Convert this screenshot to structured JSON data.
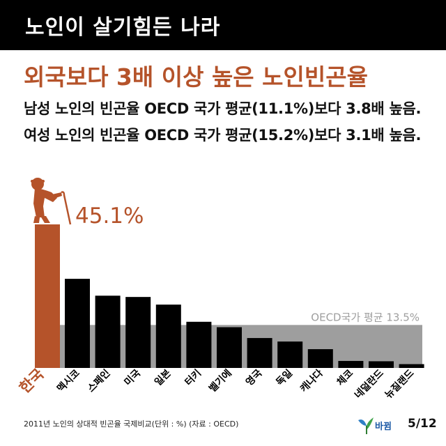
{
  "header": {
    "title": "노인이 살기힘든 나라"
  },
  "headline": "외국보다 3배 이상 높은 노인빈곤율",
  "lines": [
    "남성 노인의 빈곤율 OECD 국가 평균(11.1%)보다 3.8배 높음.",
    "여성 노인의 빈곤율 OECD 국가 평균(15.2%)보다 3.1배 높음."
  ],
  "footer": {
    "note": "2011년 노인의 상대적 빈곤율 국제비교(단위 : %) (자료 : OECD)",
    "logo_text": "바뀜",
    "page": "5/12"
  },
  "colors": {
    "highlight": "#b5532a",
    "bar": "#000000",
    "average_band": "#9e9e9e"
  },
  "icons": {
    "elder": "elderly-person-with-cane-icon",
    "logo": "leaf-logo-icon"
  },
  "chart_data": {
    "type": "bar",
    "title": "",
    "xlabel": "",
    "ylabel": "",
    "ylim": [
      0,
      45.1
    ],
    "categories": [
      "한국",
      "멕시코",
      "스페인",
      "미국",
      "일본",
      "터키",
      "벨기에",
      "영국",
      "독일",
      "캐나다",
      "체코",
      "네덜란드",
      "뉴질랜드"
    ],
    "values": [
      45.1,
      28.0,
      22.7,
      22.3,
      19.9,
      14.5,
      12.8,
      9.4,
      8.3,
      5.9,
      2.2,
      2.1,
      1.2
    ],
    "highlight_index": 0,
    "highlight_label": "45.1%",
    "reference_line": {
      "value": 13.5,
      "label": "OECD국가 평균 13.5%"
    },
    "grid": false,
    "legend": "none"
  }
}
